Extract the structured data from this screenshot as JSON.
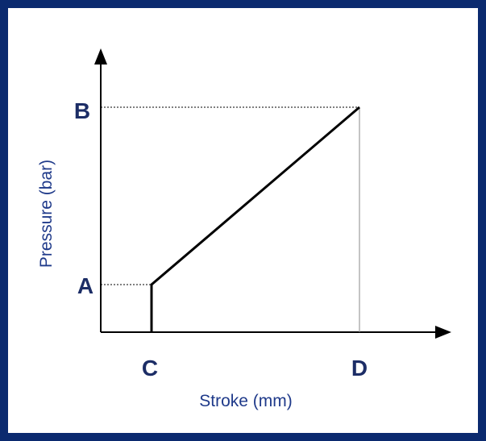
{
  "diagram": {
    "y_axis_label": "Pressure (bar)",
    "x_axis_label": "Stroke (mm)",
    "points": {
      "A": "A",
      "B": "B",
      "C": "C",
      "D": "D"
    }
  }
}
